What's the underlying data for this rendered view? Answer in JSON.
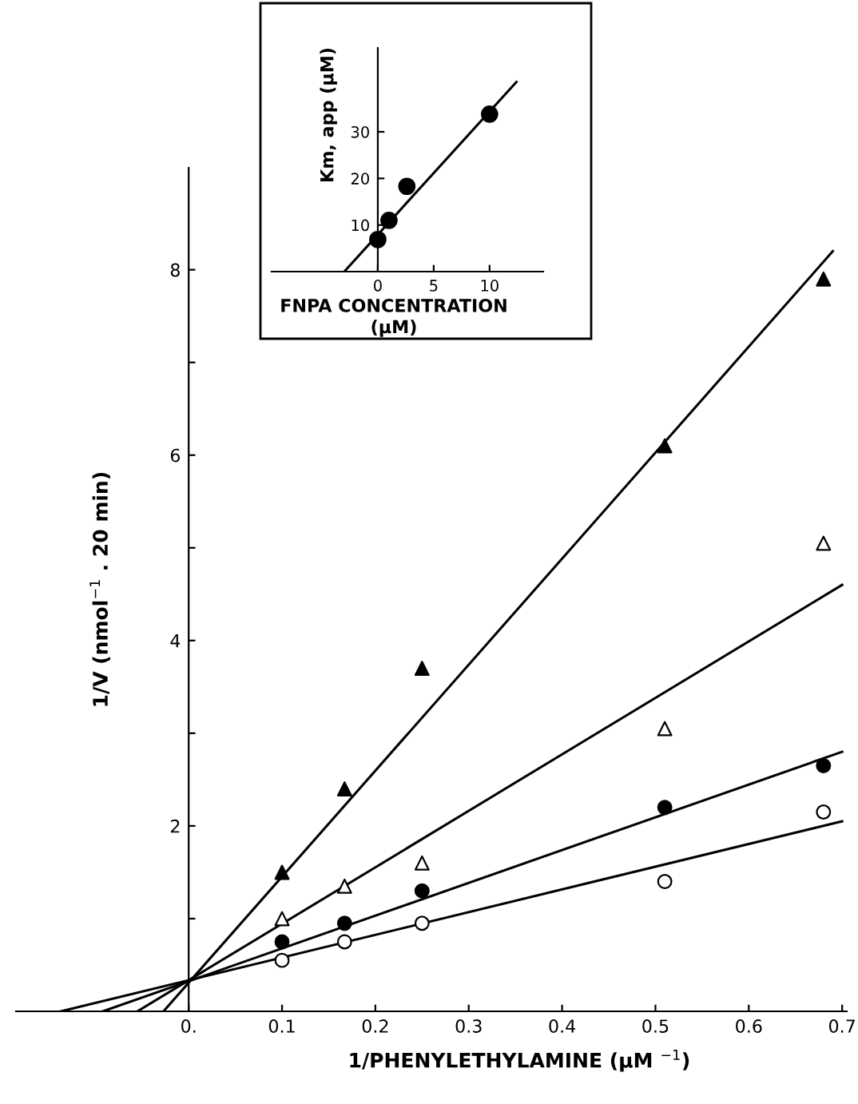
{
  "chart_data": [
    {
      "type": "scatter",
      "xlabel": "1/PHENYLETHYLAMINE (μM $^{−1}$)",
      "ylabel": "1/V (nmol$^{−1}$ . 20 min)",
      "x": [
        0.1,
        0.167,
        0.25,
        0.51,
        0.68
      ],
      "series": [
        {
          "color": "#000000",
          "marker": "triangle",
          "values": [
            1.5,
            2.4,
            3.7,
            6.1,
            7.9
          ]
        },
        {
          "color": "#ffffff",
          "marker": "triangle",
          "values": [
            1.0,
            1.35,
            1.6,
            3.05,
            5.05
          ]
        },
        {
          "color": "#000000",
          "marker": "circle",
          "values": [
            0.75,
            0.95,
            1.3,
            2.2,
            2.65
          ]
        },
        {
          "color": "#ffffff",
          "marker": "circle",
          "values": [
            0.55,
            0.75,
            0.95,
            1.4,
            2.15
          ]
        },
        {
          "type": "line",
          "color": "#000000",
          "x": [
            -0.027,
            0.69
          ],
          "values": [
            0,
            8.2
          ]
        },
        {
          "type": "line",
          "color": "#000000",
          "x": [
            -0.055,
            0.7
          ],
          "values": [
            0,
            4.6
          ]
        },
        {
          "type": "line",
          "color": "#000000",
          "x": [
            -0.092,
            0.7
          ],
          "values": [
            0,
            2.8
          ]
        },
        {
          "type": "line",
          "color": "#000000",
          "x": [
            -0.137,
            0.7
          ],
          "values": [
            0,
            2.05
          ]
        }
      ],
      "xlim": [
        -0.185,
        0.705
      ],
      "ylim": [
        0,
        9.1
      ],
      "xticks": [
        {
          "value": 0,
          "label": "0."
        },
        0.1,
        0.2,
        0.3,
        0.4,
        0.5,
        0.6,
        0.7
      ],
      "yticks": [
        {
          "value": 1,
          "label": null
        },
        2,
        {
          "value": 3,
          "label": null
        },
        4,
        {
          "value": 5,
          "label": null
        },
        6,
        {
          "value": 7,
          "label": null
        },
        8
      ],
      "grid": false,
      "legend": false
    },
    {
      "type": "scatter",
      "xlabel": "FNPA CONCENTRATION\n(μM)",
      "ylabel": "Km, app (μM)",
      "x": [
        0,
        1,
        2.6,
        10
      ],
      "series": [
        {
          "color": "#000000",
          "marker": "circle",
          "values": [
            6.9,
            11,
            18.3,
            33.8
          ]
        },
        {
          "type": "line",
          "color": "#000000",
          "x": [
            -3,
            12.4
          ],
          "values": [
            0,
            40.7
          ]
        }
      ],
      "xlim": [
        -9.5,
        14.8
      ],
      "ylim": [
        0,
        48
      ],
      "xticks": [
        0,
        5,
        10
      ],
      "yticks": [
        10,
        20,
        30
      ],
      "grid": false,
      "legend": false
    }
  ]
}
